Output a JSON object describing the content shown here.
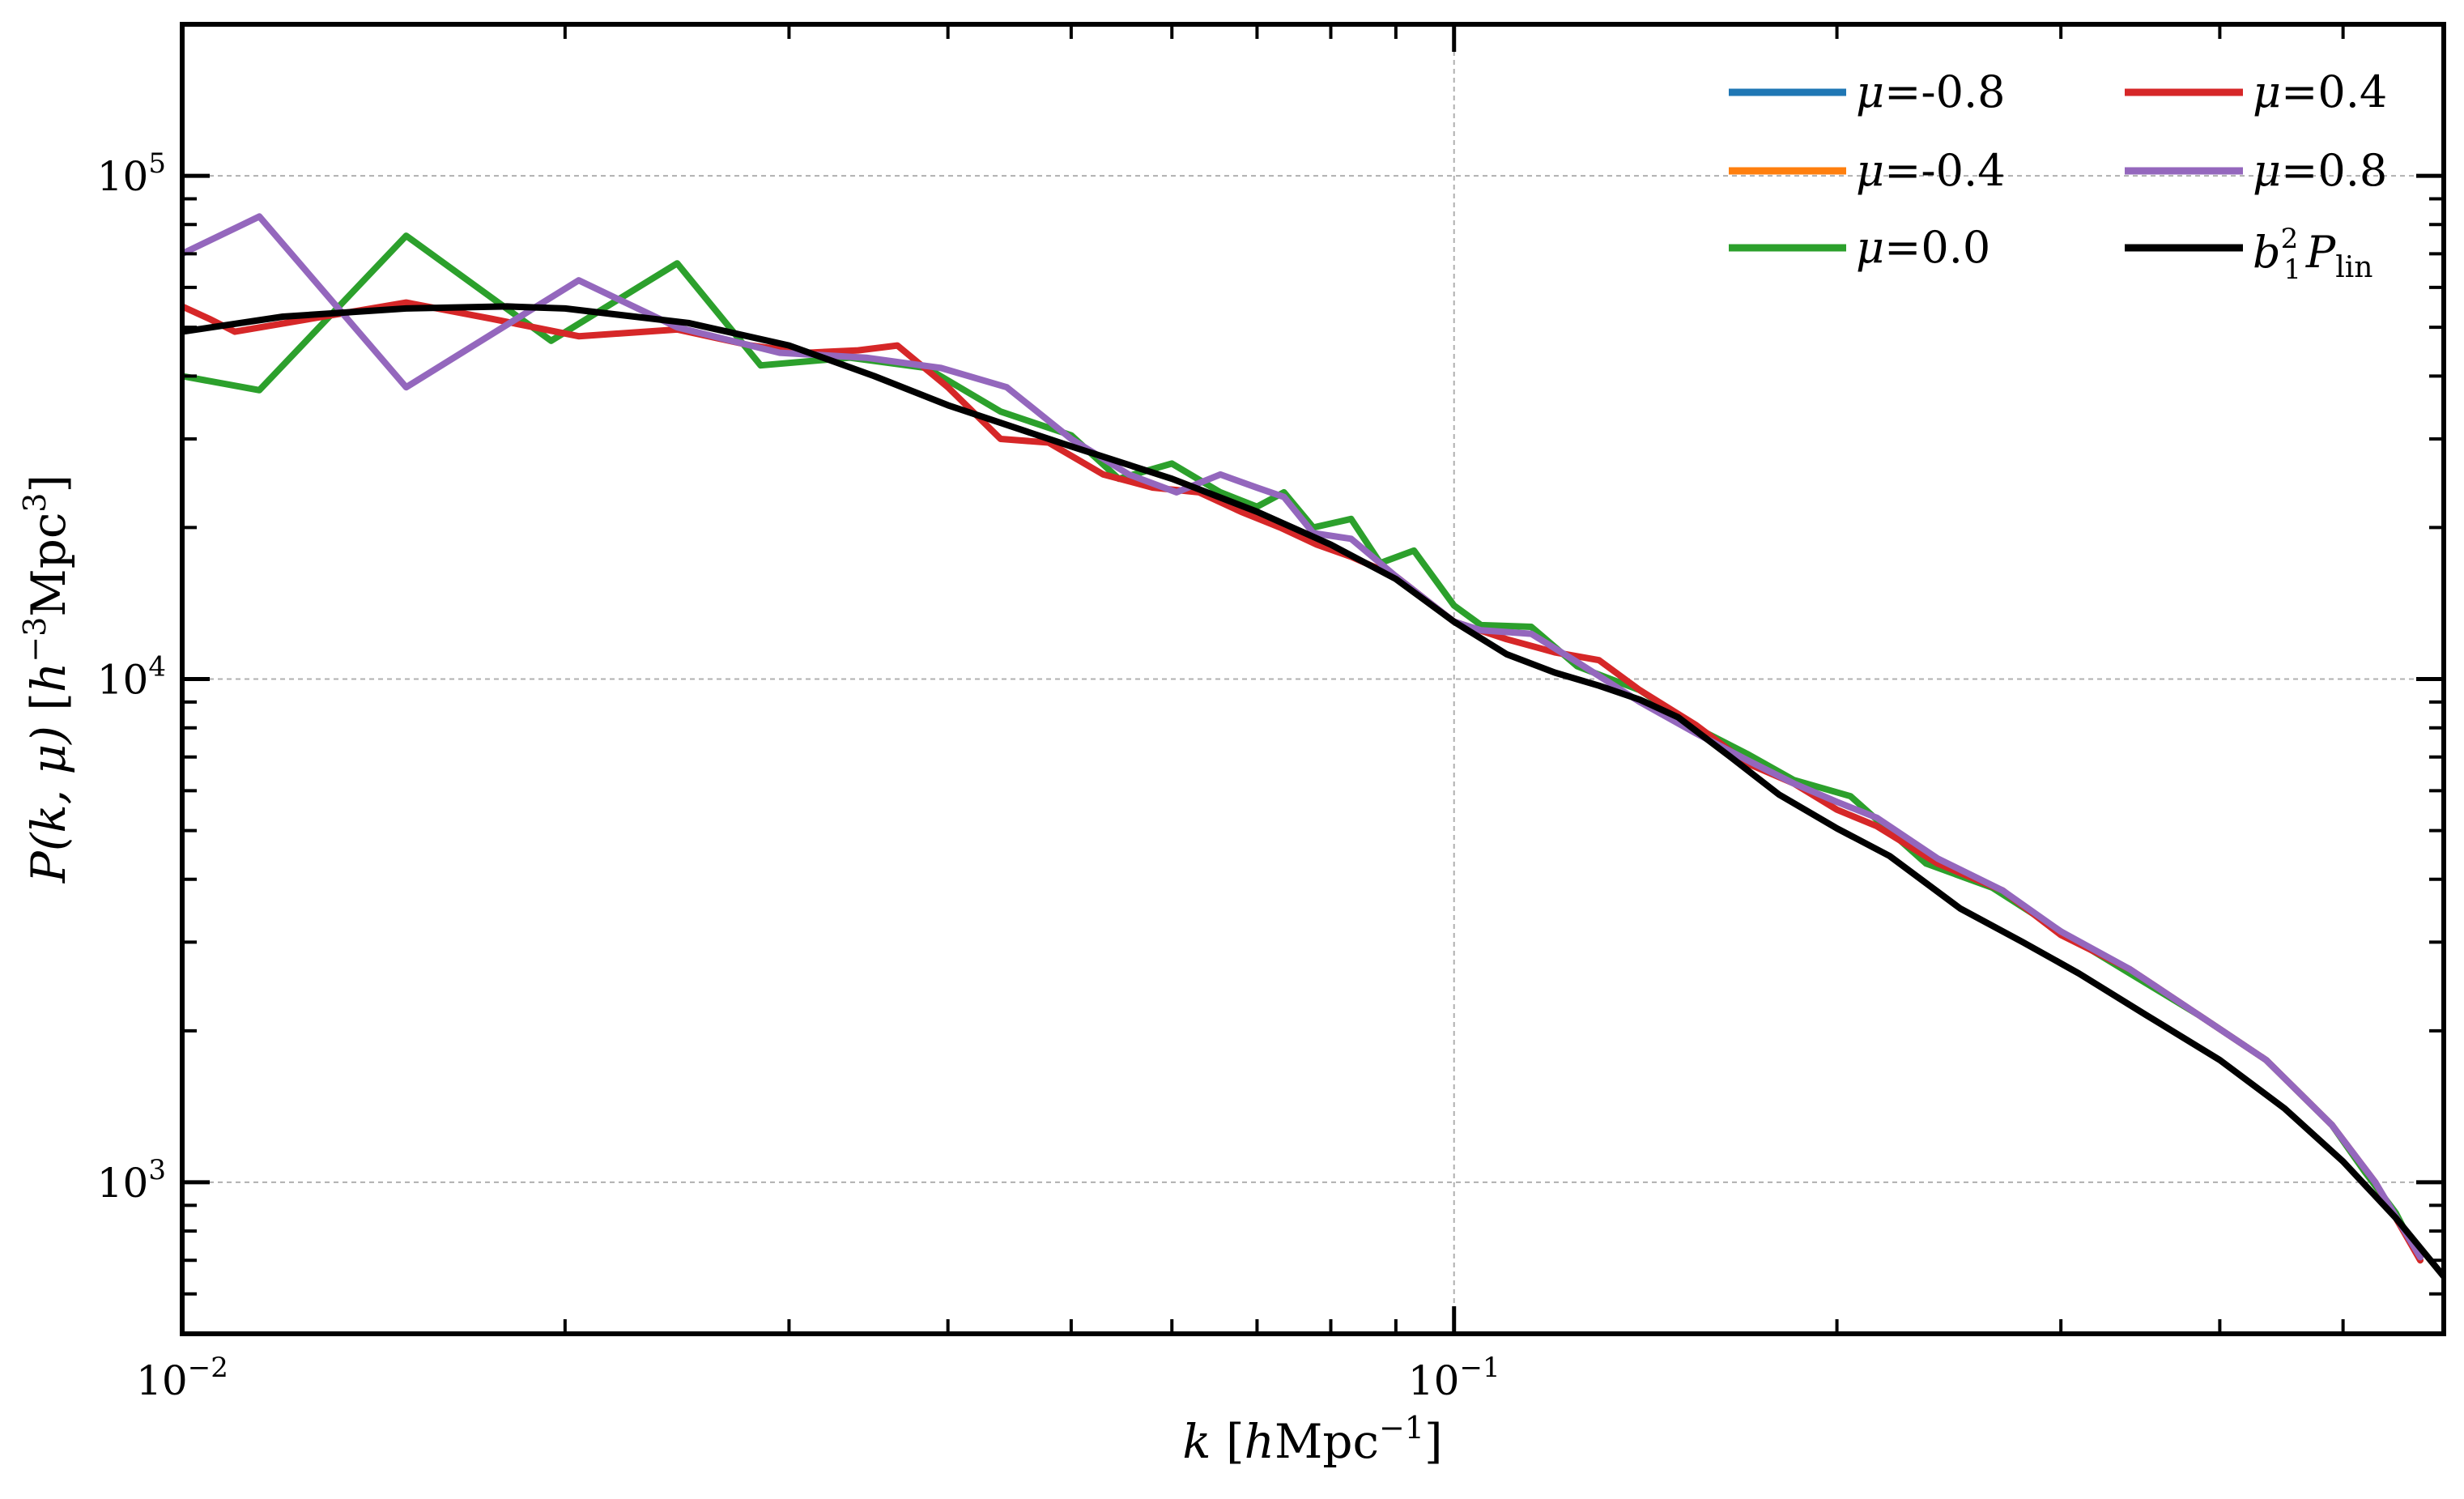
{
  "chart_data": {
    "type": "line",
    "title": "",
    "xlabel": "k [hMpc⁻¹]",
    "ylabel": "P(k, μ) [h⁻³Mpc³]",
    "xscale": "log",
    "yscale": "log",
    "xlim": [
      0.01,
      0.6
    ],
    "ylim": [
      500,
      200000
    ],
    "grid": true,
    "legend_position": "top-right",
    "legend_columns": 2,
    "xticks": [
      {
        "value": 0.01,
        "base": "10",
        "exp": "−2"
      },
      {
        "value": 0.1,
        "base": "10",
        "exp": "−1"
      }
    ],
    "yticks": [
      {
        "value": 1000,
        "base": "10",
        "exp": "3"
      },
      {
        "value": 10000,
        "base": "10",
        "exp": "4"
      },
      {
        "value": 100000,
        "base": "10",
        "exp": "5"
      }
    ],
    "series": [
      {
        "name": "μ=-0.8",
        "color": "#1f77b4",
        "x": [],
        "y": []
      },
      {
        "name": "μ=-0.4",
        "color": "#ff7f0e",
        "x": [],
        "y": []
      },
      {
        "name": "μ=0.0",
        "color": "#2ca02c",
        "x": [
          0.01,
          0.0115,
          0.015,
          0.0195,
          0.0245,
          0.0285,
          0.0335,
          0.0385,
          0.044,
          0.05,
          0.0545,
          0.06,
          0.0655,
          0.07,
          0.0735,
          0.0775,
          0.083,
          0.0875,
          0.093,
          0.1,
          0.105,
          0.115,
          0.125,
          0.14,
          0.155,
          0.17,
          0.185,
          0.205,
          0.235,
          0.265,
          0.3,
          0.34,
          0.385,
          0.435,
          0.49,
          0.52,
          0.55,
          0.575
        ],
        "y": [
          40000,
          37500,
          76000,
          47000,
          67000,
          42000,
          43500,
          41500,
          34000,
          30500,
          25000,
          26800,
          23500,
          22000,
          23500,
          20000,
          20800,
          17000,
          18000,
          14000,
          12800,
          12700,
          10600,
          9500,
          8000,
          7100,
          6300,
          5850,
          4300,
          3850,
          3150,
          2600,
          2150,
          1750,
          1300,
          1050,
          870,
          700
        ]
      },
      {
        "name": "μ=0.4",
        "color": "#d62728",
        "x": [
          0.01,
          0.0105,
          0.011,
          0.015,
          0.0175,
          0.0205,
          0.0245,
          0.028,
          0.031,
          0.034,
          0.0365,
          0.04,
          0.044,
          0.048,
          0.053,
          0.058,
          0.063,
          0.068,
          0.073,
          0.078,
          0.083,
          0.09,
          0.1,
          0.11,
          0.12,
          0.13,
          0.14,
          0.155,
          0.17,
          0.185,
          0.2,
          0.215,
          0.24,
          0.27,
          0.3,
          0.34,
          0.385,
          0.435,
          0.49,
          0.53,
          0.575
        ],
        "y": [
          55000,
          52000,
          49000,
          56000,
          52000,
          48000,
          49500,
          46000,
          44500,
          45000,
          46000,
          38000,
          30000,
          29500,
          25500,
          24000,
          23500,
          21500,
          20000,
          18500,
          17500,
          16000,
          13000,
          12000,
          11300,
          10900,
          9500,
          8100,
          6800,
          6200,
          5500,
          5100,
          4300,
          3800,
          3100,
          2650,
          2150,
          1750,
          1300,
          1000,
          700
        ]
      },
      {
        "name": "μ=0.8",
        "color": "#9467bd",
        "x": [
          0.01,
          0.0115,
          0.015,
          0.0205,
          0.0245,
          0.0295,
          0.0345,
          0.0395,
          0.0445,
          0.05,
          0.0555,
          0.0605,
          0.0655,
          0.07,
          0.0735,
          0.0775,
          0.083,
          0.09,
          0.1,
          0.105,
          0.115,
          0.125,
          0.14,
          0.155,
          0.17,
          0.185,
          0.2,
          0.215,
          0.24,
          0.27,
          0.3,
          0.34,
          0.385,
          0.435,
          0.49,
          0.53,
          0.575
        ],
        "y": [
          70000,
          83000,
          38000,
          62000,
          50000,
          44500,
          43500,
          41500,
          38000,
          30000,
          25500,
          23500,
          25500,
          24000,
          23000,
          19500,
          19000,
          16000,
          13000,
          12500,
          12300,
          10800,
          9000,
          7800,
          6900,
          6200,
          5700,
          5300,
          4400,
          3800,
          3150,
          2650,
          2150,
          1750,
          1300,
          1000,
          710
        ]
      },
      {
        "name": "b₁²P_lin",
        "color": "#000000",
        "x": [
          0.01,
          0.012,
          0.015,
          0.018,
          0.02,
          0.025,
          0.03,
          0.035,
          0.04,
          0.05,
          0.06,
          0.07,
          0.08,
          0.09,
          0.1,
          0.11,
          0.12,
          0.13,
          0.14,
          0.15,
          0.165,
          0.18,
          0.2,
          0.22,
          0.25,
          0.28,
          0.31,
          0.35,
          0.4,
          0.45,
          0.5,
          0.55,
          0.6
        ],
        "y": [
          49000,
          52500,
          54500,
          55000,
          54500,
          51000,
          46000,
          40000,
          35000,
          29000,
          25000,
          21500,
          18500,
          15800,
          13000,
          11200,
          10300,
          9700,
          9100,
          8400,
          7000,
          5900,
          5050,
          4450,
          3500,
          3000,
          2600,
          2150,
          1750,
          1400,
          1100,
          850,
          650
        ]
      }
    ],
    "legend_label_parts": [
      {
        "pre": "μ",
        "post": "=-0.8"
      },
      {
        "pre": "μ",
        "post": "=-0.4"
      },
      {
        "pre": "μ",
        "post": "=0.0"
      },
      {
        "pre": "μ",
        "post": "=0.4"
      },
      {
        "pre": "μ",
        "post": "=0.8"
      }
    ],
    "legend_last": {
      "b": "b",
      "sup": "2",
      "sub": "1",
      "P": "P",
      "lin": "lin"
    },
    "xlabel_parts": {
      "k": "k",
      "open": "[",
      "h": "h",
      "mpc": "Mpc",
      "sup": "−1",
      "close": "]"
    },
    "ylabel_parts": {
      "P": "P",
      "args": "(k, μ)",
      "open": "[",
      "h": "h",
      "sup1": "−3",
      "mpc": "Mpc",
      "sup2": "3",
      "close": "]"
    }
  }
}
